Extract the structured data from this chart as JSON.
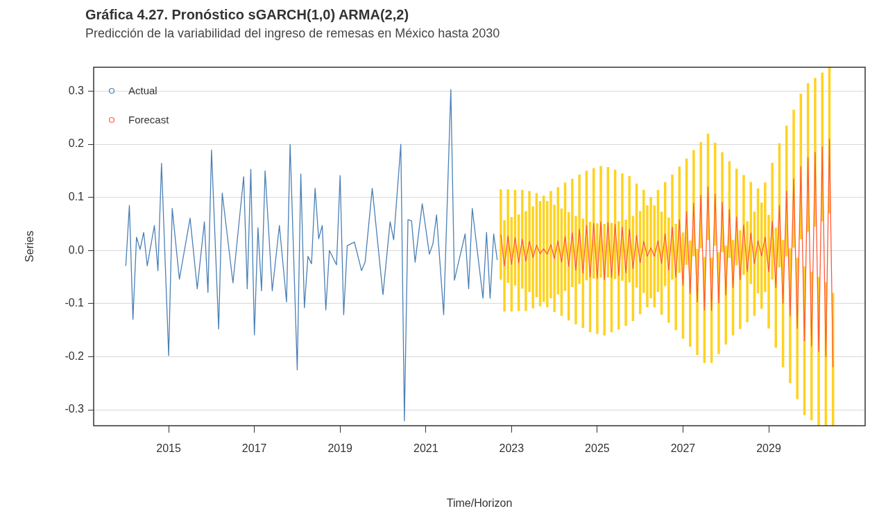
{
  "chart_data": {
    "type": "line",
    "title": "Gráfica 4.27. Pronóstico sGARCH(1,0) ARMA(2,2)",
    "subtitle": "Predicción de la variabilidad del ingreso de remesas en México hasta 2030",
    "xlabel": "Time/Horizon",
    "ylabel": "Series",
    "xlim": [
      "2013-04",
      "2031-04"
    ],
    "xticks": [
      "2015",
      "2017",
      "2019",
      "2021",
      "2023",
      "2025",
      "2027",
      "2029"
    ],
    "ylim": [
      -0.33,
      0.345
    ],
    "yticks": [
      {
        "value": -0.3,
        "label": "-0.3"
      },
      {
        "value": -0.2,
        "label": "-0.2"
      },
      {
        "value": -0.1,
        "label": "-0.1"
      },
      {
        "value": 0,
        "label": "0.0"
      },
      {
        "value": 0.1,
        "label": "0.1"
      },
      {
        "value": 0.2,
        "label": "0.2"
      },
      {
        "value": 0.3,
        "label": "0.3"
      }
    ],
    "grid": "y",
    "legend": "top left",
    "marker": "none",
    "line_style": "solid",
    "series": [
      {
        "name": "Actual",
        "color": "#4a7fb5",
        "x": [
          "2014-01",
          "2014-02",
          "2014-03",
          "2014-04",
          "2014-05",
          "2014-06",
          "2014-07",
          "2014-09",
          "2014-10",
          "2014-11",
          "2015-01",
          "2015-02",
          "2015-04",
          "2015-07",
          "2015-09",
          "2015-11",
          "2015-12",
          "2016-01",
          "2016-03",
          "2016-04",
          "2016-07",
          "2016-10",
          "2016-11",
          "2016-12",
          "2017-01",
          "2017-02",
          "2017-03",
          "2017-04",
          "2017-06",
          "2017-08",
          "2017-10",
          "2017-11",
          "2018-01",
          "2018-02",
          "2018-03",
          "2018-04",
          "2018-05",
          "2018-06",
          "2018-07",
          "2018-08",
          "2018-09",
          "2018-10",
          "2018-12",
          "2019-01",
          "2019-02",
          "2019-03",
          "2019-05",
          "2019-07",
          "2019-08",
          "2019-10",
          "2020-01",
          "2020-03",
          "2020-04",
          "2020-06",
          "2020-07",
          "2020-08",
          "2020-09",
          "2020-10",
          "2020-12",
          "2021-02",
          "2021-03",
          "2021-04",
          "2021-06",
          "2021-08",
          "2021-09",
          "2021-12",
          "2022-01",
          "2022-02",
          "2022-05",
          "2022-06",
          "2022-07",
          "2022-08",
          "2022-09"
        ],
        "values": [
          -0.029,
          0.085,
          -0.13,
          0.025,
          0.002,
          0.034,
          -0.029,
          0.047,
          -0.038,
          0.164,
          -0.198,
          0.079,
          -0.054,
          0.061,
          -0.072,
          0.054,
          -0.079,
          0.189,
          -0.148,
          0.108,
          -0.061,
          0.139,
          -0.072,
          0.153,
          -0.159,
          0.043,
          -0.076,
          0.15,
          -0.076,
          0.047,
          -0.097,
          0.2,
          -0.225,
          0.144,
          -0.108,
          -0.011,
          -0.025,
          0.117,
          0.022,
          0.047,
          -0.112,
          0,
          -0.027,
          0.141,
          -0.121,
          0.009,
          0.016,
          -0.038,
          -0.022,
          0.117,
          -0.083,
          0.054,
          0.02,
          0.2,
          -0.321,
          0.058,
          0.056,
          -0.022,
          0.088,
          -0.007,
          0.013,
          0.067,
          -0.121,
          0.303,
          -0.056,
          0.031,
          -0.072,
          0.079,
          -0.09,
          0.034,
          -0.09,
          0.031,
          -0.018
        ]
      },
      {
        "name": "Forecast",
        "color": "#ff5a36",
        "x": [
          "2022-10",
          "2022-11",
          "2022-12",
          "2023-01",
          "2023-02",
          "2023-03",
          "2023-04",
          "2023-05",
          "2023-06",
          "2023-07",
          "2023-08",
          "2023-09",
          "2023-10",
          "2023-11",
          "2023-12",
          "2024-01",
          "2024-02",
          "2024-03",
          "2024-04",
          "2024-05",
          "2024-06",
          "2024-07",
          "2024-08",
          "2024-09",
          "2024-10",
          "2024-11",
          "2024-12",
          "2025-01",
          "2025-02",
          "2025-03",
          "2025-04",
          "2025-05",
          "2025-06",
          "2025-07",
          "2025-08",
          "2025-09",
          "2025-10",
          "2025-11",
          "2025-12",
          "2026-01",
          "2026-02",
          "2026-03",
          "2026-04",
          "2026-05",
          "2026-06",
          "2026-07",
          "2026-08",
          "2026-09",
          "2026-10",
          "2026-11",
          "2026-12",
          "2027-01",
          "2027-02",
          "2027-03",
          "2027-04",
          "2027-05",
          "2027-06",
          "2027-07",
          "2027-08",
          "2027-09",
          "2027-10",
          "2027-11",
          "2027-12",
          "2028-01",
          "2028-02",
          "2028-03",
          "2028-04",
          "2028-05",
          "2028-06",
          "2028-07",
          "2028-08",
          "2028-09",
          "2028-10",
          "2028-11",
          "2028-12",
          "2029-01",
          "2029-02",
          "2029-03",
          "2029-04",
          "2029-05",
          "2029-06",
          "2029-07",
          "2029-08",
          "2029-09",
          "2029-10",
          "2029-11",
          "2029-12",
          "2030-01",
          "2030-02",
          "2030-03",
          "2030-04",
          "2030-05",
          "2030-06",
          "2030-07"
        ],
        "values": [
          0.03,
          -0.029,
          0.027,
          -0.026,
          0.024,
          -0.023,
          0.021,
          -0.02,
          0.017,
          -0.013,
          0.01,
          -0.006,
          0.003,
          -0.007,
          0.011,
          -0.015,
          0.018,
          -0.022,
          0.026,
          -0.03,
          0.033,
          -0.037,
          0.04,
          -0.043,
          0.047,
          -0.05,
          0.051,
          -0.053,
          0.054,
          -0.055,
          0.053,
          -0.051,
          0.049,
          -0.047,
          0.044,
          -0.042,
          0.04,
          -0.034,
          0.028,
          -0.023,
          0.017,
          -0.011,
          0.005,
          -0.011,
          0.018,
          -0.024,
          0.031,
          -0.037,
          0.044,
          -0.05,
          0.058,
          -0.066,
          0.073,
          -0.081,
          0.089,
          -0.097,
          0.104,
          -0.112,
          0.12,
          -0.113,
          0.106,
          -0.099,
          0.091,
          -0.084,
          0.077,
          -0.07,
          0.063,
          -0.055,
          0.048,
          -0.04,
          0.033,
          -0.025,
          0.018,
          -0.01,
          0.025,
          -0.04,
          0.055,
          -0.07,
          0.085,
          -0.1,
          0.112,
          -0.123,
          0.135,
          -0.147,
          0.158,
          -0.17,
          0.175,
          -0.18,
          0.185,
          -0.19,
          0.195,
          -0.2,
          0.21,
          -0.22
        ],
        "errors": [
          [
            -0.055,
            0.115
          ],
          [
            -0.115,
            0.057
          ],
          [
            -0.061,
            0.115
          ],
          [
            -0.115,
            0.063
          ],
          [
            -0.066,
            0.114
          ],
          [
            -0.114,
            0.068
          ],
          [
            -0.072,
            0.114
          ],
          [
            -0.114,
            0.074
          ],
          [
            -0.078,
            0.112
          ],
          [
            -0.109,
            0.083
          ],
          [
            -0.088,
            0.108
          ],
          [
            -0.105,
            0.093
          ],
          [
            -0.097,
            0.103
          ],
          [
            -0.107,
            0.093
          ],
          [
            -0.09,
            0.112
          ],
          [
            -0.116,
            0.086
          ],
          [
            -0.083,
            0.119
          ],
          [
            -0.123,
            0.079
          ],
          [
            -0.076,
            0.128
          ],
          [
            -0.132,
            0.072
          ],
          [
            -0.069,
            0.135
          ],
          [
            -0.139,
            0.065
          ],
          [
            -0.063,
            0.143
          ],
          [
            -0.146,
            0.06
          ],
          [
            -0.056,
            0.15
          ],
          [
            -0.154,
            0.054
          ],
          [
            -0.053,
            0.155
          ],
          [
            -0.157,
            0.051
          ],
          [
            -0.051,
            0.159
          ],
          [
            -0.16,
            0.05
          ],
          [
            -0.051,
            0.157
          ],
          [
            -0.154,
            0.052
          ],
          [
            -0.054,
            0.152
          ],
          [
            -0.149,
            0.055
          ],
          [
            -0.057,
            0.145
          ],
          [
            -0.142,
            0.058
          ],
          [
            -0.06,
            0.14
          ],
          [
            -0.133,
            0.065
          ],
          [
            -0.07,
            0.126
          ],
          [
            -0.12,
            0.074
          ],
          [
            -0.08,
            0.114
          ],
          [
            -0.107,
            0.085
          ],
          [
            -0.09,
            0.1
          ],
          [
            -0.107,
            0.085
          ],
          [
            -0.078,
            0.114
          ],
          [
            -0.121,
            0.073
          ],
          [
            -0.067,
            0.129
          ],
          [
            -0.136,
            0.062
          ],
          [
            -0.055,
            0.143
          ],
          [
            -0.15,
            0.05
          ],
          [
            -0.042,
            0.158
          ],
          [
            -0.166,
            0.034
          ],
          [
            -0.027,
            0.173
          ],
          [
            -0.181,
            0.019
          ],
          [
            -0.011,
            0.189
          ],
          [
            -0.197,
            0.003
          ],
          [
            0.004,
            0.204
          ],
          [
            -0.212,
            -0.012
          ],
          [
            0.02,
            0.22
          ],
          [
            -0.212,
            -0.014
          ],
          [
            0.009,
            0.203
          ],
          [
            -0.195,
            -0.003
          ],
          [
            -0.003,
            0.185
          ],
          [
            -0.177,
            0.009
          ],
          [
            -0.014,
            0.168
          ],
          [
            -0.16,
            0.02
          ],
          [
            -0.028,
            0.154
          ],
          [
            -0.148,
            0.038
          ],
          [
            -0.046,
            0.142
          ],
          [
            -0.135,
            0.055
          ],
          [
            -0.063,
            0.129
          ],
          [
            -0.123,
            0.073
          ],
          [
            -0.081,
            0.117
          ],
          [
            -0.11,
            0.09
          ],
          [
            -0.078,
            0.128
          ],
          [
            -0.147,
            0.067
          ],
          [
            -0.055,
            0.165
          ],
          [
            -0.183,
            0.043
          ],
          [
            -0.032,
            0.202
          ],
          [
            -0.22,
            0.02
          ],
          [
            -0.011,
            0.235
          ],
          [
            -0.25,
            0.004
          ],
          [
            0.005,
            0.265
          ],
          [
            -0.28,
            -0.014
          ],
          [
            0.021,
            0.295
          ],
          [
            -0.31,
            -0.03
          ],
          [
            0.035,
            0.315
          ],
          [
            -0.32,
            -0.04
          ],
          [
            0.045,
            0.325
          ],
          [
            -0.33,
            -0.05
          ],
          [
            0.055,
            0.335
          ],
          [
            -0.33,
            -0.06
          ],
          [
            0.07,
            0.345
          ],
          [
            -0.33,
            -0.08
          ]
        ]
      }
    ]
  }
}
